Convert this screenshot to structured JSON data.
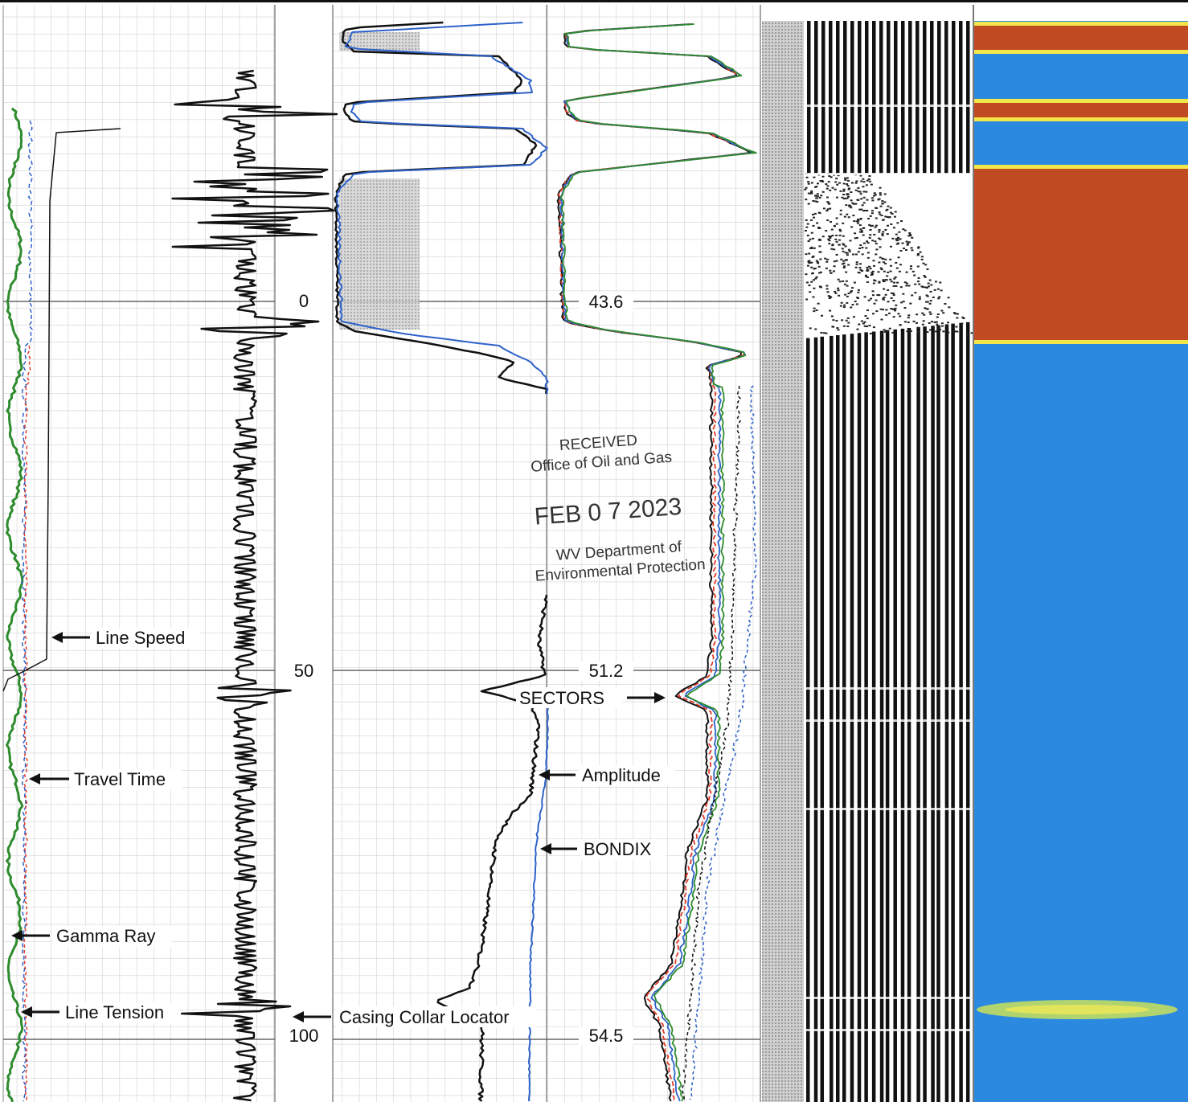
{
  "chart_data": {
    "type": "line",
    "depth_axis": {
      "ticks": [
        {
          "value": 0,
          "label": "0"
        },
        {
          "value": 50,
          "label": "50"
        },
        {
          "value": 100,
          "label": "100"
        }
      ],
      "range": [
        -40,
        115
      ]
    },
    "readouts": [
      {
        "depth": 0,
        "label": "43.6"
      },
      {
        "depth": 50,
        "label": "51.2"
      },
      {
        "depth": 100,
        "label": "54.5"
      }
    ],
    "curve_labels": {
      "line_speed": "Line Speed",
      "travel_time": "Travel Time",
      "gamma_ray": "Gamma Ray",
      "line_tension": "Line Tension",
      "casing_collar_locator": "Casing Collar Locator",
      "sectors": "SECTORS",
      "amplitude": "Amplitude",
      "bondix": "BONDIX"
    },
    "tracks": [
      {
        "id": "correlation",
        "curves": [
          "Line Speed",
          "Travel Time",
          "Gamma Ray",
          "Line Tension",
          "Casing Collar Locator"
        ]
      },
      {
        "id": "amplitude",
        "curves": [
          "Amplitude",
          "BONDIX"
        ]
      },
      {
        "id": "sectors",
        "curves": [
          "SECTORS"
        ]
      },
      {
        "id": "vdl",
        "curves": []
      },
      {
        "id": "cement-map",
        "curves": []
      }
    ],
    "grid": true,
    "colors": {
      "black_curve": "#111111",
      "blue_curve": "#2e62c9",
      "red_curve": "#e23b2a",
      "green_curve": "#2e8b2e",
      "map_background": "#2b8ae0",
      "map_band": "#c04a22",
      "map_edge": "#f3e64a"
    },
    "stamp": {
      "line1": "RECEIVED",
      "line2": "Office of Oil and Gas",
      "date": "FEB 0 7 2023",
      "line3": "WV Department of",
      "line4": "Environmental Protection"
    }
  }
}
